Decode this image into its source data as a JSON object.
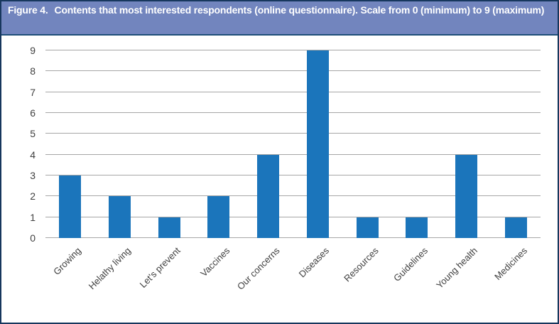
{
  "figure_caption": {
    "label": "Figure 4.",
    "text": "Contents that most interested respondents (online questionnaire). Scale from 0 (minimum) to 9 (maximum)"
  },
  "chart_data": {
    "type": "bar",
    "title": "Figure 4. Contents that most interested respondents (online questionnaire). Scale from 0 (minimum) to 9 (maximum)",
    "categories": [
      "Growing",
      "Helathy living",
      "Let's prevent",
      "Vaccines",
      "Our concerns",
      "Diseases",
      "Resources",
      "Guidelines",
      "Young health",
      "Medicines"
    ],
    "values": [
      3,
      2,
      1,
      2,
      4,
      9,
      1,
      1,
      4,
      1
    ],
    "xlabel": "",
    "ylabel": "",
    "ylim": [
      0,
      9
    ],
    "yticks": [
      0,
      1,
      2,
      3,
      4,
      5,
      6,
      7,
      8,
      9
    ],
    "grid": true,
    "legend": "none"
  },
  "colors": {
    "bar": "#1B75BB",
    "caption_background": "#7285BE",
    "caption_text": "#FFFFFF",
    "caption_underline": "#1F4E79",
    "figure_border": "#17375D",
    "gridline": "#A6A6A6",
    "axis_label_text": "#3F3F3F"
  }
}
